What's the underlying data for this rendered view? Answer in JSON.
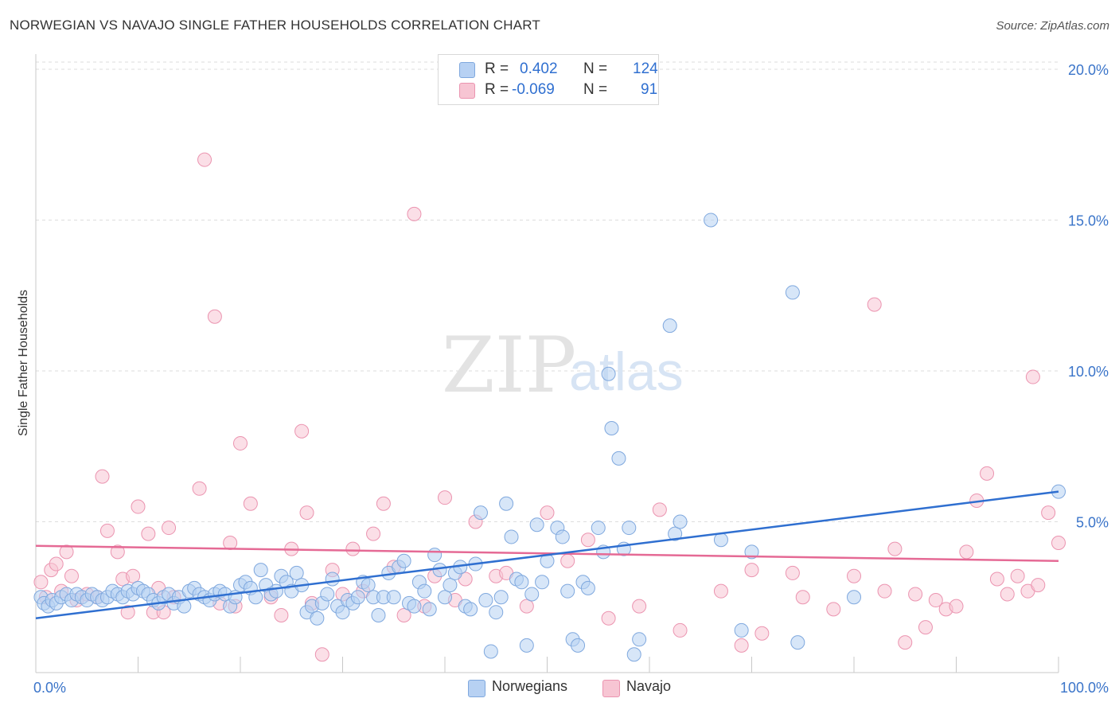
{
  "title": "NORWEGIAN VS NAVAJO SINGLE FATHER HOUSEHOLDS CORRELATION CHART",
  "source": "Source: ZipAtlas.com",
  "watermark": {
    "zip": "ZIP",
    "atlas": "atlas"
  },
  "legend_top": {
    "rows": [
      {
        "r_label": "R =",
        "r_value": "0.402",
        "n_label": "N =",
        "n_value": "124"
      },
      {
        "r_label": "R =",
        "r_value": "-0.069",
        "n_label": "N =",
        "n_value": "91"
      }
    ]
  },
  "colors": {
    "blue_fill": "#b7d1f3",
    "blue_stroke": "#7fa8de",
    "blue_line": "#2f6fd0",
    "pink_fill": "#f7c5d3",
    "pink_stroke": "#eb94b0",
    "pink_line": "#e56a95",
    "axis_label": "#3a74c9"
  },
  "chart_data": {
    "type": "scatter",
    "title": "NORWEGIAN VS NAVAJO SINGLE FATHER HOUSEHOLDS CORRELATION CHART",
    "xlabel": "",
    "ylabel": "Single Father Households",
    "xlim": [
      0,
      100
    ],
    "ylim": [
      0,
      20.5
    ],
    "x_tick_labels": [
      "0.0%",
      "100.0%"
    ],
    "y_ticks": [
      5,
      10,
      15,
      20
    ],
    "y_tick_labels": [
      "5.0%",
      "10.0%",
      "15.0%",
      "20.0%"
    ],
    "grid": true,
    "legend_position": "bottom",
    "series": [
      {
        "name": "Norwegians",
        "r": 0.402,
        "n": 124,
        "trend": {
          "x": [
            0,
            100
          ],
          "y": [
            1.8,
            6.0
          ]
        },
        "points": [
          [
            0.5,
            2.5
          ],
          [
            0.8,
            2.3
          ],
          [
            1.2,
            2.2
          ],
          [
            1.6,
            2.4
          ],
          [
            2.0,
            2.3
          ],
          [
            2.5,
            2.5
          ],
          [
            3.0,
            2.6
          ],
          [
            3.5,
            2.4
          ],
          [
            4.0,
            2.6
          ],
          [
            4.5,
            2.5
          ],
          [
            5.0,
            2.4
          ],
          [
            5.5,
            2.6
          ],
          [
            6.0,
            2.5
          ],
          [
            6.5,
            2.4
          ],
          [
            7.0,
            2.5
          ],
          [
            7.5,
            2.7
          ],
          [
            8.0,
            2.6
          ],
          [
            8.5,
            2.5
          ],
          [
            9.0,
            2.7
          ],
          [
            9.5,
            2.6
          ],
          [
            10.0,
            2.8
          ],
          [
            10.5,
            2.7
          ],
          [
            11.0,
            2.6
          ],
          [
            11.5,
            2.4
          ],
          [
            12.0,
            2.3
          ],
          [
            12.5,
            2.5
          ],
          [
            13.0,
            2.6
          ],
          [
            13.5,
            2.3
          ],
          [
            14.0,
            2.5
          ],
          [
            14.5,
            2.2
          ],
          [
            15.0,
            2.7
          ],
          [
            15.5,
            2.8
          ],
          [
            16.0,
            2.6
          ],
          [
            16.5,
            2.5
          ],
          [
            17.0,
            2.4
          ],
          [
            17.5,
            2.6
          ],
          [
            18.0,
            2.7
          ],
          [
            18.5,
            2.6
          ],
          [
            19.0,
            2.2
          ],
          [
            19.5,
            2.5
          ],
          [
            20.0,
            2.9
          ],
          [
            20.5,
            3.0
          ],
          [
            21.0,
            2.8
          ],
          [
            21.5,
            2.5
          ],
          [
            22.0,
            3.4
          ],
          [
            22.5,
            2.9
          ],
          [
            23.0,
            2.6
          ],
          [
            23.5,
            2.7
          ],
          [
            24.0,
            3.2
          ],
          [
            24.5,
            3.0
          ],
          [
            25.0,
            2.7
          ],
          [
            25.5,
            3.3
          ],
          [
            26.0,
            2.9
          ],
          [
            26.5,
            2.0
          ],
          [
            27.0,
            2.2
          ],
          [
            27.5,
            1.8
          ],
          [
            28.0,
            2.3
          ],
          [
            28.5,
            2.6
          ],
          [
            29.0,
            3.1
          ],
          [
            29.5,
            2.2
          ],
          [
            30.0,
            2.0
          ],
          [
            30.5,
            2.4
          ],
          [
            31.0,
            2.3
          ],
          [
            31.5,
            2.5
          ],
          [
            32.0,
            3.0
          ],
          [
            32.5,
            2.9
          ],
          [
            33.0,
            2.5
          ],
          [
            33.5,
            1.9
          ],
          [
            34.0,
            2.5
          ],
          [
            34.5,
            3.3
          ],
          [
            35.0,
            2.5
          ],
          [
            35.5,
            3.5
          ],
          [
            36.0,
            3.7
          ],
          [
            36.5,
            2.3
          ],
          [
            37.0,
            2.2
          ],
          [
            37.5,
            3.0
          ],
          [
            38.0,
            2.7
          ],
          [
            38.5,
            2.1
          ],
          [
            39.0,
            3.9
          ],
          [
            39.5,
            3.4
          ],
          [
            40.0,
            2.5
          ],
          [
            40.5,
            2.9
          ],
          [
            41.0,
            3.3
          ],
          [
            41.5,
            3.5
          ],
          [
            42.0,
            2.2
          ],
          [
            42.5,
            2.1
          ],
          [
            43.0,
            3.6
          ],
          [
            43.5,
            5.3
          ],
          [
            44.0,
            2.4
          ],
          [
            44.5,
            0.7
          ],
          [
            45.0,
            2.0
          ],
          [
            45.5,
            2.5
          ],
          [
            46.0,
            5.6
          ],
          [
            46.5,
            4.5
          ],
          [
            47.0,
            3.1
          ],
          [
            47.5,
            3.0
          ],
          [
            48.0,
            0.9
          ],
          [
            48.5,
            2.6
          ],
          [
            49.0,
            4.9
          ],
          [
            49.5,
            3.0
          ],
          [
            50.0,
            3.7
          ],
          [
            51.0,
            4.8
          ],
          [
            51.5,
            4.5
          ],
          [
            52.0,
            2.7
          ],
          [
            52.5,
            1.1
          ],
          [
            53.0,
            0.9
          ],
          [
            53.5,
            3.0
          ],
          [
            54.0,
            2.8
          ],
          [
            55.0,
            4.8
          ],
          [
            55.5,
            4.0
          ],
          [
            56.0,
            9.9
          ],
          [
            56.3,
            8.1
          ],
          [
            57.0,
            7.1
          ],
          [
            57.5,
            4.1
          ],
          [
            58.0,
            4.8
          ],
          [
            58.5,
            0.6
          ],
          [
            59.0,
            1.1
          ],
          [
            62.0,
            11.5
          ],
          [
            62.5,
            4.6
          ],
          [
            63.0,
            5.0
          ],
          [
            66.0,
            15.0
          ],
          [
            67.0,
            4.4
          ],
          [
            69.0,
            1.4
          ],
          [
            70.0,
            4.0
          ],
          [
            74.0,
            12.6
          ],
          [
            74.5,
            1.0
          ],
          [
            80.0,
            2.5
          ],
          [
            100.0,
            6.0
          ]
        ]
      },
      {
        "name": "Navajo",
        "r": -0.069,
        "n": 91,
        "trend": {
          "x": [
            0,
            100
          ],
          "y": [
            4.2,
            3.7
          ]
        },
        "points": [
          [
            0.5,
            3.0
          ],
          [
            1.0,
            2.5
          ],
          [
            1.5,
            3.4
          ],
          [
            2.0,
            3.6
          ],
          [
            2.5,
            2.7
          ],
          [
            3.0,
            4.0
          ],
          [
            3.5,
            3.2
          ],
          [
            4.0,
            2.4
          ],
          [
            5.0,
            2.6
          ],
          [
            6.0,
            2.5
          ],
          [
            6.5,
            6.5
          ],
          [
            7.0,
            4.7
          ],
          [
            8.0,
            4.0
          ],
          [
            8.5,
            3.1
          ],
          [
            9.0,
            2.0
          ],
          [
            9.5,
            3.2
          ],
          [
            10.0,
            5.5
          ],
          [
            11.0,
            4.6
          ],
          [
            11.5,
            2.0
          ],
          [
            12.0,
            2.8
          ],
          [
            12.5,
            2.0
          ],
          [
            13.0,
            4.8
          ],
          [
            13.5,
            2.5
          ],
          [
            16.0,
            6.1
          ],
          [
            16.5,
            17.0
          ],
          [
            17.5,
            11.8
          ],
          [
            18.0,
            2.3
          ],
          [
            19.0,
            4.3
          ],
          [
            19.5,
            2.2
          ],
          [
            20.0,
            7.6
          ],
          [
            21.0,
            5.6
          ],
          [
            23.0,
            2.5
          ],
          [
            24.0,
            1.9
          ],
          [
            25.0,
            4.1
          ],
          [
            26.0,
            8.0
          ],
          [
            26.5,
            5.3
          ],
          [
            27.0,
            2.3
          ],
          [
            28.0,
            0.6
          ],
          [
            29.0,
            3.4
          ],
          [
            30.0,
            2.6
          ],
          [
            31.0,
            4.1
          ],
          [
            32.0,
            2.7
          ],
          [
            33.0,
            4.6
          ],
          [
            34.0,
            5.6
          ],
          [
            35.0,
            3.5
          ],
          [
            36.0,
            1.9
          ],
          [
            37.0,
            15.2
          ],
          [
            38.0,
            2.2
          ],
          [
            39.0,
            3.2
          ],
          [
            40.0,
            5.8
          ],
          [
            41.0,
            2.4
          ],
          [
            42.0,
            3.1
          ],
          [
            43.0,
            5.0
          ],
          [
            45.0,
            3.2
          ],
          [
            46.0,
            3.3
          ],
          [
            48.0,
            2.2
          ],
          [
            50.0,
            5.3
          ],
          [
            52.0,
            3.7
          ],
          [
            54.0,
            4.4
          ],
          [
            56.0,
            1.8
          ],
          [
            59.0,
            2.2
          ],
          [
            61.0,
            5.4
          ],
          [
            63.0,
            1.4
          ],
          [
            67.0,
            2.7
          ],
          [
            69.0,
            0.9
          ],
          [
            70.0,
            3.4
          ],
          [
            71.0,
            1.3
          ],
          [
            74.0,
            3.3
          ],
          [
            75.0,
            2.5
          ],
          [
            78.0,
            2.1
          ],
          [
            80.0,
            3.2
          ],
          [
            82.0,
            12.2
          ],
          [
            83.0,
            2.7
          ],
          [
            84.0,
            4.1
          ],
          [
            85.0,
            1.0
          ],
          [
            86.0,
            2.6
          ],
          [
            87.0,
            1.5
          ],
          [
            88.0,
            2.4
          ],
          [
            89.0,
            2.1
          ],
          [
            90.0,
            2.2
          ],
          [
            91.0,
            4.0
          ],
          [
            92.0,
            5.7
          ],
          [
            93.0,
            6.6
          ],
          [
            94.0,
            3.1
          ],
          [
            95.0,
            2.6
          ],
          [
            96.0,
            3.2
          ],
          [
            97.0,
            2.7
          ],
          [
            97.5,
            9.8
          ],
          [
            98.0,
            2.9
          ],
          [
            99.0,
            5.3
          ],
          [
            100.0,
            4.3
          ]
        ]
      }
    ]
  },
  "legend_bottom": [
    "Norwegians",
    "Navajo"
  ]
}
